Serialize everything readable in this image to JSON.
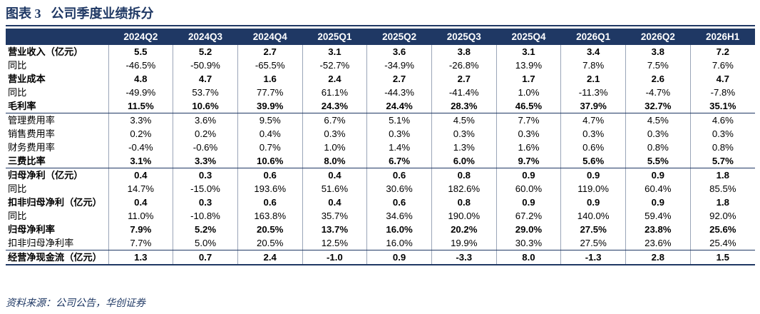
{
  "title": {
    "label": "图表 3",
    "text": "公司季度业绩拆分"
  },
  "columns": [
    "2024Q2",
    "2024Q3",
    "2024Q4",
    "2025Q1",
    "2025Q2",
    "2025Q3",
    "2025Q4",
    "2026Q1",
    "2026Q2",
    "2026H1"
  ],
  "rows": [
    {
      "label": "营业收入（亿元）",
      "values": [
        "5.5",
        "5.2",
        "2.7",
        "3.1",
        "3.6",
        "3.8",
        "3.1",
        "3.4",
        "3.8",
        "7.2"
      ]
    },
    {
      "label": "同比",
      "values": [
        "-46.5%",
        "-50.9%",
        "-65.5%",
        "-52.7%",
        "-34.9%",
        "-26.8%",
        "13.9%",
        "7.8%",
        "7.5%",
        "7.6%"
      ]
    },
    {
      "label": "营业成本",
      "values": [
        "4.8",
        "4.7",
        "1.6",
        "2.4",
        "2.7",
        "2.7",
        "1.7",
        "2.1",
        "2.6",
        "4.7"
      ]
    },
    {
      "label": "同比",
      "values": [
        "-49.9%",
        "53.7%",
        "77.7%",
        "61.1%",
        "-44.3%",
        "-41.4%",
        "1.0%",
        "-11.3%",
        "-4.7%",
        "-7.8%"
      ]
    },
    {
      "label": "毛利率",
      "values": [
        "11.5%",
        "10.6%",
        "39.9%",
        "24.3%",
        "24.4%",
        "28.3%",
        "46.5%",
        "37.9%",
        "32.7%",
        "35.1%"
      ]
    },
    {
      "label": "管理费用率",
      "values": [
        "3.3%",
        "3.6%",
        "9.5%",
        "6.7%",
        "5.1%",
        "4.5%",
        "7.7%",
        "4.7%",
        "4.5%",
        "4.6%"
      ]
    },
    {
      "label": "销售费用率",
      "values": [
        "0.2%",
        "0.2%",
        "0.4%",
        "0.3%",
        "0.3%",
        "0.3%",
        "0.3%",
        "0.3%",
        "0.3%",
        "0.3%"
      ]
    },
    {
      "label": "财务费用率",
      "values": [
        "-0.4%",
        "-0.6%",
        "0.7%",
        "1.0%",
        "1.4%",
        "1.3%",
        "1.6%",
        "0.6%",
        "0.8%",
        "0.8%"
      ]
    },
    {
      "label": "三费比率",
      "values": [
        "3.1%",
        "3.3%",
        "10.6%",
        "8.0%",
        "6.7%",
        "6.0%",
        "9.7%",
        "5.6%",
        "5.5%",
        "5.7%"
      ]
    },
    {
      "label": "归母净利（亿元）",
      "values": [
        "0.4",
        "0.3",
        "0.6",
        "0.4",
        "0.6",
        "0.8",
        "0.9",
        "0.9",
        "0.9",
        "1.8"
      ]
    },
    {
      "label": "同比",
      "values": [
        "14.7%",
        "-15.0%",
        "193.6%",
        "51.6%",
        "30.6%",
        "182.6%",
        "60.0%",
        "119.0%",
        "60.4%",
        "85.5%"
      ]
    },
    {
      "label": "扣非归母净利（亿元）",
      "values": [
        "0.4",
        "0.3",
        "0.6",
        "0.4",
        "0.6",
        "0.8",
        "0.9",
        "0.9",
        "0.9",
        "1.8"
      ]
    },
    {
      "label": "同比",
      "values": [
        "11.0%",
        "-10.8%",
        "163.8%",
        "35.7%",
        "34.6%",
        "190.0%",
        "67.2%",
        "140.0%",
        "59.4%",
        "92.0%"
      ]
    },
    {
      "label": "归母净利率",
      "values": [
        "7.9%",
        "5.2%",
        "20.5%",
        "13.7%",
        "16.0%",
        "20.2%",
        "29.0%",
        "27.5%",
        "23.8%",
        "25.6%"
      ]
    },
    {
      "label": "扣非归母净利率",
      "values": [
        "7.7%",
        "5.0%",
        "20.5%",
        "12.5%",
        "16.0%",
        "19.9%",
        "30.3%",
        "27.5%",
        "23.6%",
        "25.4%"
      ]
    },
    {
      "label": "经营净现金流（亿元）",
      "values": [
        "1.3",
        "0.7",
        "2.4",
        "-1.0",
        "0.9",
        "-3.3",
        "8.0",
        "-1.3",
        "2.8",
        "1.5"
      ]
    }
  ],
  "source": "资料来源：公司公告，华创证券"
}
